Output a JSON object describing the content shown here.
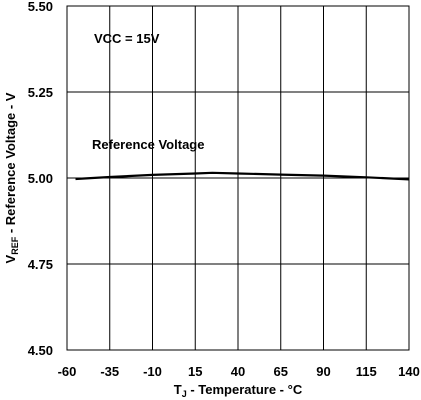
{
  "chart_data": {
    "type": "line",
    "annotations": [
      "VCC = 15V"
    ],
    "xlabel": {
      "main": "T",
      "sub": "J",
      "rest": " - Temperature - °C"
    },
    "ylabel": {
      "main": "V",
      "sub": "REF",
      "rest": " - Reference Voltage - V"
    },
    "xlim": [
      -60,
      140
    ],
    "ylim": [
      4.5,
      5.5
    ],
    "x_ticks": [
      "-60",
      "-35",
      "-10",
      "15",
      "40",
      "65",
      "90",
      "115",
      "140"
    ],
    "y_ticks": [
      "5.50",
      "5.25",
      "5.00",
      "4.75",
      "4.50"
    ],
    "grid": true,
    "series": [
      {
        "name": "Reference Voltage",
        "color": "#000000",
        "x": [
          -55,
          -35,
          -10,
          15,
          25,
          40,
          65,
          90,
          115,
          140
        ],
        "y": [
          4.997,
          5.003,
          5.009,
          5.013,
          5.015,
          5.013,
          5.01,
          5.007,
          5.002,
          4.996
        ]
      }
    ]
  }
}
